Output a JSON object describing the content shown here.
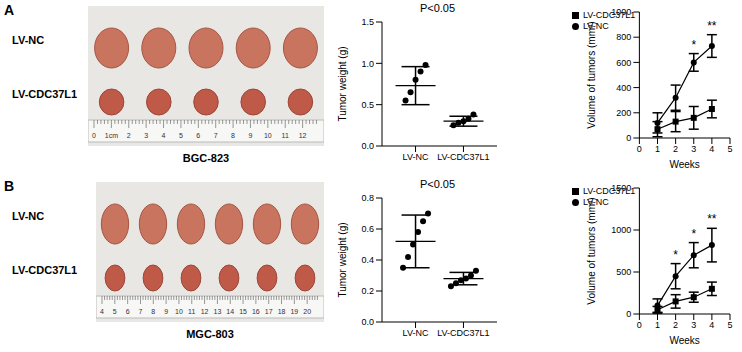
{
  "chart_data": [
    {
      "type": "dot_plot",
      "title": "P<0.05",
      "ylabel": "Tumor weight (g)",
      "categories": [
        "LV-NC",
        "LV-CDC37L1"
      ],
      "values": [
        [
          0.55,
          0.65,
          0.8,
          0.9,
          0.98
        ],
        [
          0.25,
          0.28,
          0.3,
          0.33,
          0.38
        ]
      ],
      "mean": [
        0.73,
        0.3
      ],
      "sd": [
        0.23,
        0.06
      ],
      "ylim": [
        0,
        1.5
      ],
      "yticks": [
        {
          "value": 0,
          "label": "0.0"
        },
        0.5,
        {
          "value": 1,
          "label": "1.0"
        },
        1.5
      ],
      "color": "#000000"
    },
    {
      "type": "line",
      "xlabel": "Weeks",
      "ylabel": "Volume of tumors (mm³)",
      "x": [
        1,
        2,
        3,
        4
      ],
      "xlim": [
        0,
        5
      ],
      "xticks": [
        0,
        1,
        2,
        3,
        4,
        5
      ],
      "ylim": [
        0,
        1000
      ],
      "yticks": [
        0,
        200,
        400,
        600,
        800,
        1000
      ],
      "legend": "upper left",
      "series": [
        {
          "name": "LV-NC",
          "color": "#000000",
          "marker": "circle",
          "values": [
            120,
            320,
            600,
            730
          ],
          "error": [
            80,
            100,
            70,
            90
          ]
        },
        {
          "name": "LV-CDC37L1",
          "color": "#000000",
          "marker": "square",
          "values": [
            70,
            130,
            160,
            230
          ],
          "error": [
            60,
            80,
            90,
            70
          ]
        }
      ],
      "annotations": [
        {
          "x": 3,
          "text": "*"
        },
        {
          "x": 4,
          "text": "**"
        }
      ]
    },
    {
      "type": "dot_plot",
      "title": "P<0.05",
      "ylabel": "Tumor weight (g)",
      "categories": [
        "LV-NC",
        "LV-CDC37L1"
      ],
      "values": [
        [
          0.35,
          0.42,
          0.5,
          0.58,
          0.65,
          0.7
        ],
        [
          0.23,
          0.25,
          0.27,
          0.28,
          0.3,
          0.33
        ]
      ],
      "mean": [
        0.52,
        0.28
      ],
      "sd": [
        0.17,
        0.04
      ],
      "ylim": [
        0,
        0.8
      ],
      "yticks": [
        {
          "value": 0,
          "label": "0.0"
        },
        0.2,
        0.4,
        0.6,
        0.8
      ],
      "color": "#000000"
    },
    {
      "type": "line",
      "xlabel": "Weeks",
      "ylabel": "Volume of tumors (mm³)",
      "x": [
        1,
        2,
        3,
        4
      ],
      "xlim": [
        0,
        5
      ],
      "xticks": [
        0,
        1,
        2,
        3,
        4,
        5
      ],
      "ylim": [
        0,
        1500
      ],
      "yticks": [
        0,
        500,
        1000,
        1500
      ],
      "legend": "upper left",
      "series": [
        {
          "name": "LV-NC",
          "color": "#000000",
          "marker": "circle",
          "values": [
            100,
            450,
            700,
            820
          ],
          "error": [
            80,
            150,
            150,
            200
          ]
        },
        {
          "name": "LV-CDC37L1",
          "color": "#000000",
          "marker": "square",
          "values": [
            50,
            150,
            200,
            300
          ],
          "error": [
            40,
            80,
            60,
            80
          ]
        }
      ],
      "annotations": [
        {
          "x": 2,
          "text": "*"
        },
        {
          "x": 3,
          "text": "*"
        },
        {
          "x": 4,
          "text": "**"
        }
      ]
    }
  ],
  "panels": [
    {
      "label": "A",
      "cell_line": "BGC-823",
      "rows": [
        "LV-NC",
        "LV-CDC37L1"
      ],
      "tumor_count": 5,
      "ruler_labels": [
        "0",
        "1cm",
        "2",
        "3",
        "4",
        "5",
        "6",
        "7",
        "8",
        "9",
        "10",
        "11",
        "12"
      ]
    },
    {
      "label": "B",
      "cell_line": "MGC-803",
      "rows": [
        "LV-NC",
        "LV-CDC37L1"
      ],
      "tumor_count": 6,
      "ruler_labels": [
        "4",
        "5",
        "6",
        "7",
        "8",
        "9",
        "10",
        "11",
        "12",
        "13",
        "14",
        "15",
        "16",
        "17",
        "18",
        "19",
        "20"
      ]
    }
  ]
}
